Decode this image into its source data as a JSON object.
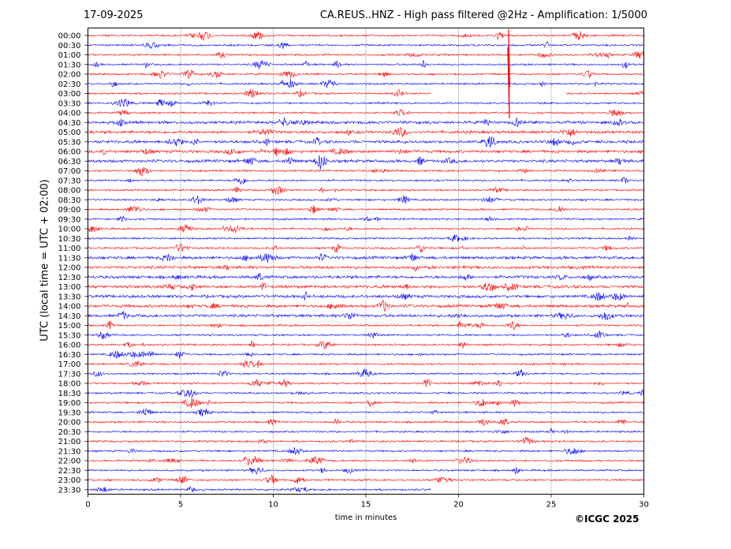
{
  "header": {
    "date": "17-09-2025",
    "title": "CA.REUS..HNZ - High pass filtered @2Hz - Amplification: 1/5000"
  },
  "footer": {
    "copyright": "©ICGC 2025"
  },
  "chart_data": {
    "type": "line",
    "title": "CA.REUS..HNZ - High pass filtered @2Hz - Amplification: 1/5000",
    "xlabel": "time in minutes",
    "ylabel": "UTC (local time = UTC + 02:00)",
    "xlim": [
      0,
      30
    ],
    "xticks": [
      0,
      5,
      10,
      15,
      20,
      25,
      30
    ],
    "x_gridlines": [
      5,
      10,
      15,
      20,
      25
    ],
    "grid_style": "dotted vertical",
    "series_colors": [
      "#ff0000",
      "#0000ff"
    ],
    "rows": [
      "00:00",
      "00:30",
      "01:00",
      "01:30",
      "02:00",
      "02:30",
      "03:00",
      "03:30",
      "04:00",
      "04:30",
      "05:00",
      "05:30",
      "06:00",
      "06:30",
      "07:00",
      "07:30",
      "08:00",
      "08:30",
      "09:00",
      "09:30",
      "10:00",
      "10:30",
      "11:00",
      "11:30",
      "12:00",
      "12:30",
      "13:00",
      "13:30",
      "14:00",
      "14:30",
      "15:00",
      "15:30",
      "16:00",
      "16:30",
      "17:00",
      "17:30",
      "18:00",
      "18:30",
      "19:00",
      "19:30",
      "20:00",
      "20:30",
      "21:00",
      "21:30",
      "22:00",
      "22:30",
      "23:00",
      "23:30"
    ],
    "trace_end_minute_last_row": 18.5,
    "gap_row": "03:00",
    "gap_minutes": [
      18.5,
      25.8
    ],
    "spike_minute": 22.7
  }
}
